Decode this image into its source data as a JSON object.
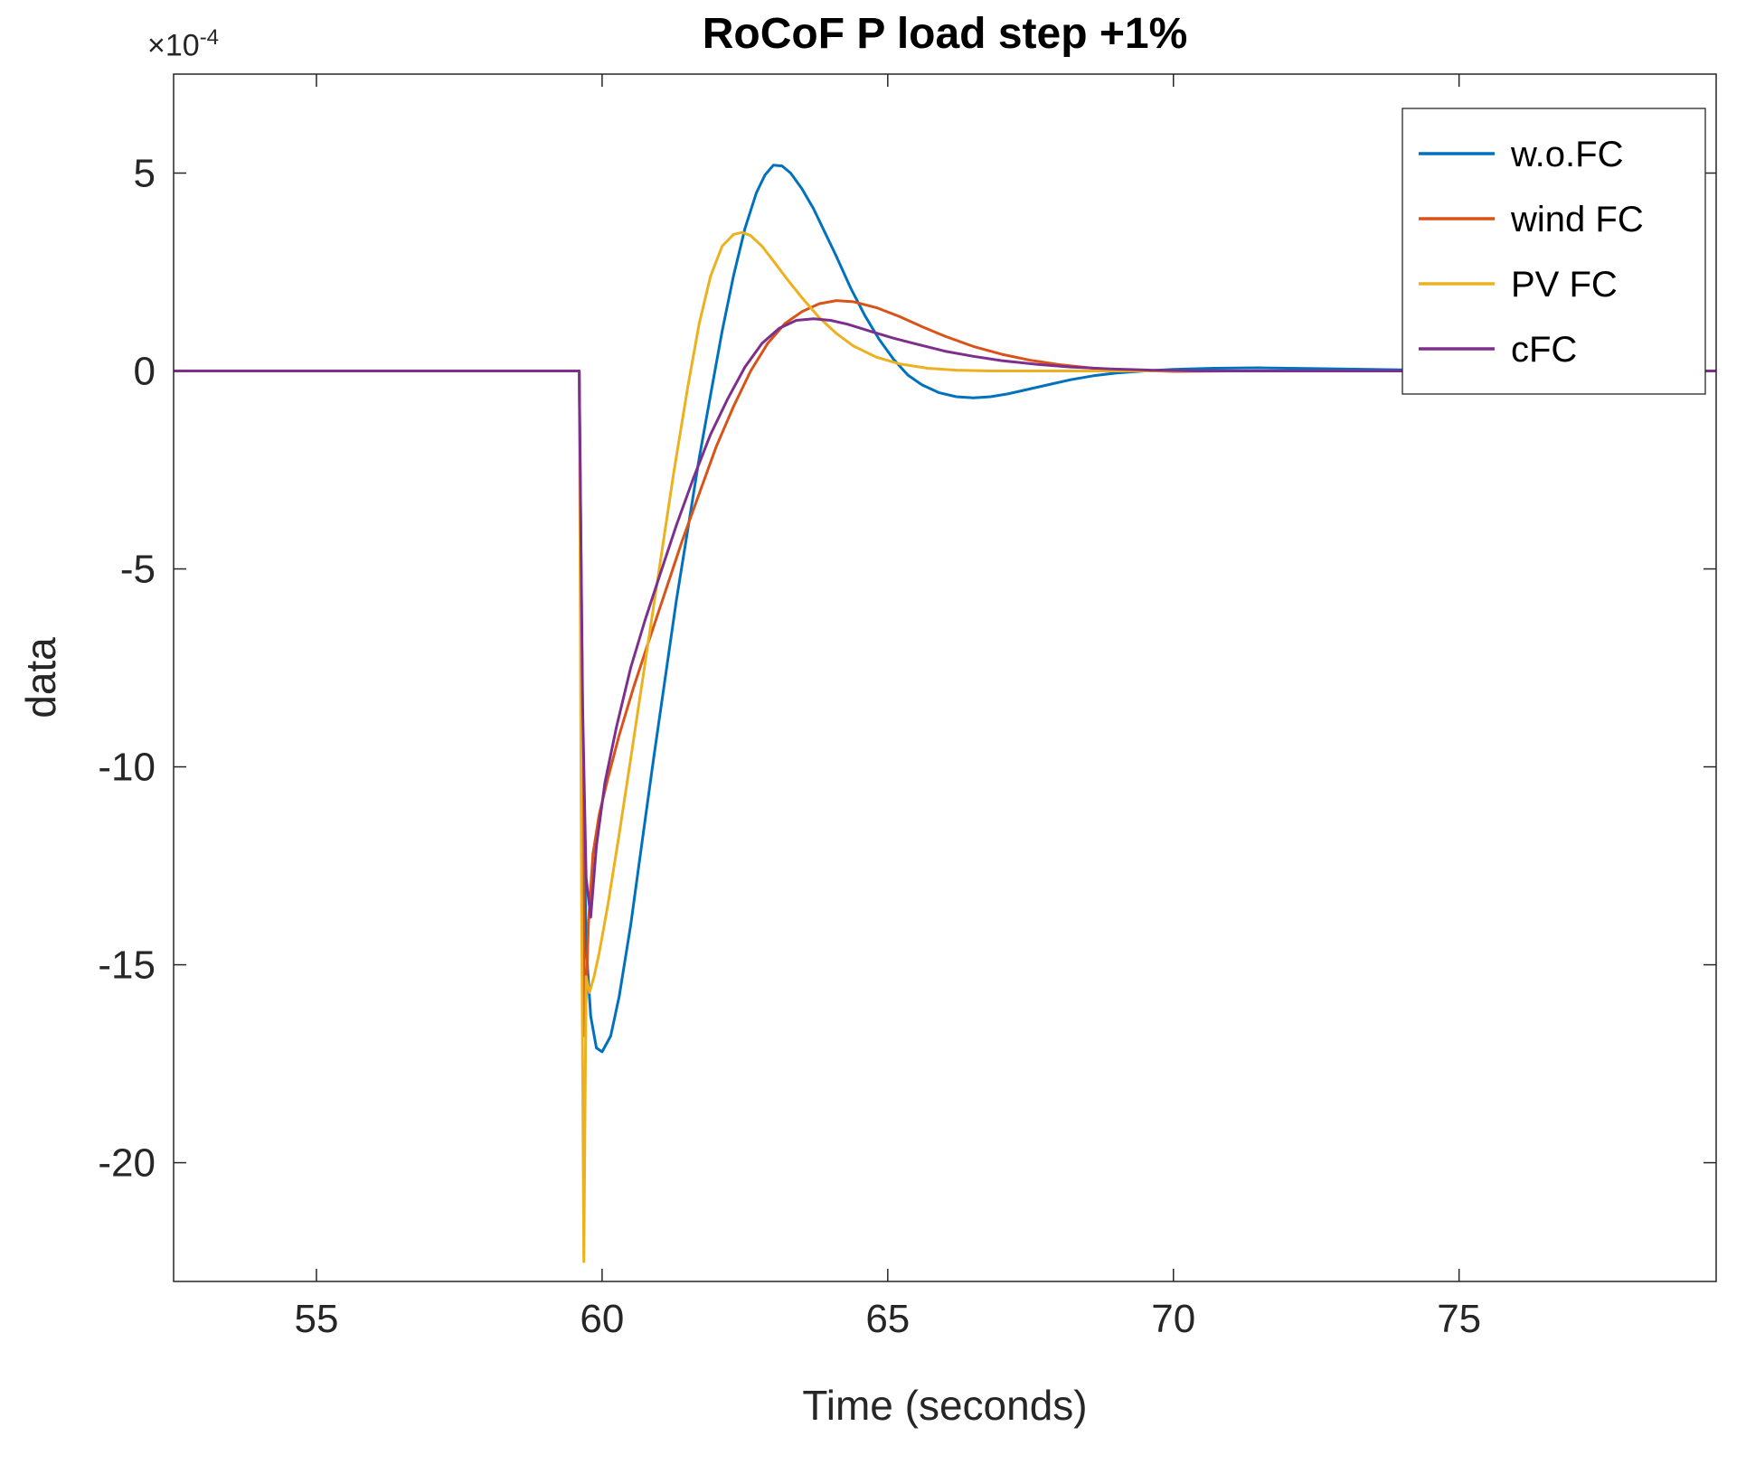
{
  "figure": {
    "title": "RoCoF P load step +1%",
    "xlabel": "Time (seconds)",
    "ylabel": "data",
    "y_offset_label": {
      "base": "×10",
      "exp": "-4"
    }
  },
  "chart_data": {
    "type": "line",
    "title": "RoCoF P load step +1%",
    "xlabel": "Time (seconds)",
    "ylabel": "data",
    "y_unit": "1e-4",
    "y_offset_text": "×10^-4",
    "xlim": [
      52.5,
      79.5
    ],
    "ylim": [
      -23,
      7.5
    ],
    "xticks": [
      55,
      60,
      65,
      70,
      75
    ],
    "yticks": [
      5,
      0,
      -5,
      -10,
      -15,
      -20
    ],
    "grid": false,
    "legend_position": "top-right-inside",
    "axis_color": "#262626",
    "series": [
      {
        "id": "wofc",
        "name": "w.o.FC",
        "color": "#0072BD",
        "x": [
          52.5,
          56,
          59.0,
          59.6,
          59.66,
          59.72,
          59.8,
          59.9,
          60.0,
          60.15,
          60.3,
          60.5,
          60.7,
          60.9,
          61.1,
          61.3,
          61.5,
          61.7,
          61.9,
          62.1,
          62.3,
          62.5,
          62.7,
          62.85,
          63.0,
          63.15,
          63.3,
          63.5,
          63.7,
          63.9,
          64.1,
          64.35,
          64.6,
          64.85,
          65.1,
          65.35,
          65.6,
          65.9,
          66.2,
          66.5,
          66.8,
          67.1,
          67.4,
          67.8,
          68.2,
          68.6,
          69.0,
          69.5,
          70.0,
          70.7,
          71.5,
          72.5,
          74.0,
          76.0,
          79.5
        ],
        "y": [
          0,
          0,
          0,
          0,
          -9.0,
          -14.5,
          -16.3,
          -17.1,
          -17.2,
          -16.8,
          -15.8,
          -14.0,
          -11.9,
          -9.8,
          -7.8,
          -5.8,
          -4.0,
          -2.2,
          -0.6,
          1.0,
          2.4,
          3.6,
          4.5,
          4.95,
          5.2,
          5.18,
          5.0,
          4.6,
          4.1,
          3.5,
          2.9,
          2.1,
          1.4,
          0.8,
          0.3,
          -0.1,
          -0.35,
          -0.55,
          -0.65,
          -0.68,
          -0.65,
          -0.58,
          -0.48,
          -0.35,
          -0.22,
          -0.12,
          -0.05,
          0.0,
          0.04,
          0.07,
          0.08,
          0.06,
          0.03,
          0.0,
          0.0
        ]
      },
      {
        "id": "windfc",
        "name": "wind FC",
        "color": "#D95319",
        "x": [
          52.5,
          56,
          59.0,
          59.6,
          59.65,
          59.7,
          59.76,
          59.84,
          59.95,
          60.1,
          60.3,
          60.55,
          60.8,
          61.1,
          61.4,
          61.7,
          62.0,
          62.3,
          62.6,
          62.9,
          63.2,
          63.5,
          63.8,
          64.1,
          64.4,
          64.8,
          65.2,
          65.6,
          66.0,
          66.5,
          67.0,
          67.5,
          68.0,
          68.6,
          69.2,
          70.0,
          71.0,
          72.5,
          75.0,
          79.5
        ],
        "y": [
          0,
          0,
          0,
          0,
          -10.0,
          -16.8,
          -14.0,
          -12.2,
          -11.2,
          -10.3,
          -9.2,
          -8.0,
          -6.9,
          -5.6,
          -4.3,
          -3.1,
          -1.9,
          -0.9,
          0.0,
          0.7,
          1.2,
          1.5,
          1.7,
          1.78,
          1.75,
          1.6,
          1.38,
          1.12,
          0.88,
          0.62,
          0.42,
          0.27,
          0.16,
          0.07,
          0.02,
          -0.01,
          0.0,
          0.0,
          0.0,
          0.0
        ]
      },
      {
        "id": "pvfc",
        "name": "PV FC",
        "color": "#EDB120",
        "x": [
          52.5,
          56,
          59.0,
          59.6,
          59.64,
          59.68,
          59.72,
          59.78,
          59.86,
          59.95,
          60.1,
          60.3,
          60.5,
          60.75,
          61.0,
          61.25,
          61.5,
          61.7,
          61.9,
          62.1,
          62.3,
          62.45,
          62.6,
          62.8,
          63.0,
          63.25,
          63.5,
          63.8,
          64.1,
          64.4,
          64.8,
          65.2,
          65.7,
          66.2,
          66.8,
          67.5,
          68.5,
          70.0,
          75.0,
          79.5
        ],
        "y": [
          0,
          0,
          0,
          0,
          -13.0,
          -22.5,
          -15.3,
          -15.7,
          -15.3,
          -14.7,
          -13.5,
          -11.7,
          -9.8,
          -7.4,
          -5.0,
          -2.6,
          -0.4,
          1.2,
          2.4,
          3.15,
          3.45,
          3.5,
          3.42,
          3.15,
          2.78,
          2.3,
          1.85,
          1.35,
          0.95,
          0.63,
          0.35,
          0.18,
          0.07,
          0.02,
          0.0,
          0.0,
          0.0,
          0.0,
          0.0,
          0.0
        ]
      },
      {
        "id": "cfc",
        "name": "cFC",
        "color": "#7E2F8E",
        "x": [
          52.5,
          56,
          59.0,
          59.6,
          59.66,
          59.72,
          59.8,
          59.9,
          60.05,
          60.25,
          60.5,
          60.75,
          61.0,
          61.3,
          61.6,
          61.9,
          62.2,
          62.5,
          62.8,
          63.1,
          63.4,
          63.7,
          64.0,
          64.3,
          64.7,
          65.1,
          65.5,
          66.0,
          66.5,
          67.0,
          67.6,
          68.2,
          68.9,
          69.6,
          70.4,
          71.5,
          73.0,
          75.0,
          79.5
        ],
        "y": [
          0,
          0,
          0,
          0,
          -8.5,
          -12.8,
          -13.8,
          -12.0,
          -10.4,
          -9.0,
          -7.5,
          -6.3,
          -5.2,
          -3.9,
          -2.7,
          -1.6,
          -0.7,
          0.1,
          0.7,
          1.08,
          1.28,
          1.32,
          1.28,
          1.18,
          1.0,
          0.83,
          0.68,
          0.5,
          0.37,
          0.26,
          0.17,
          0.1,
          0.05,
          0.02,
          0.0,
          0.0,
          0.0,
          0.0,
          0.0
        ]
      }
    ],
    "legend_entries": [
      "w.o.FC",
      "wind FC",
      "PV FC",
      "cFC"
    ]
  }
}
